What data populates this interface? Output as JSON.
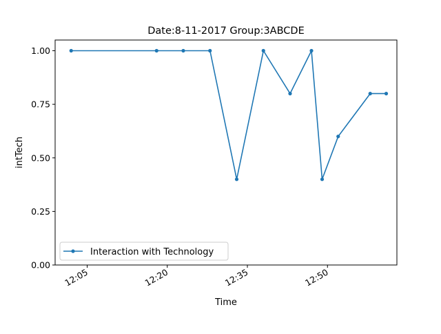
{
  "chart_data": {
    "type": "line",
    "title": "Date:8-11-2017  Group:3ABCDE",
    "xlabel": "Time",
    "ylabel": "intTech",
    "x_ticks": [
      "12:05",
      "12:20",
      "12:35",
      "12:50"
    ],
    "y_ticks": [
      "0.00",
      "0.25",
      "0.50",
      "0.75",
      "1.00"
    ],
    "ylim": [
      0,
      1.05
    ],
    "xlim": [
      "11:59",
      "13:03"
    ],
    "grid": false,
    "legend_position": "lower-left",
    "series": [
      {
        "name": "Interaction with Technology",
        "color": "#1f77b4",
        "marker": "dot",
        "x": [
          "12:02",
          "12:18",
          "12:23",
          "12:28",
          "12:33",
          "12:38",
          "12:43",
          "12:47",
          "12:49",
          "12:52",
          "12:58",
          "13:01"
        ],
        "values": [
          1.0,
          1.0,
          1.0,
          1.0,
          0.4,
          1.0,
          0.8,
          1.0,
          0.4,
          0.6,
          0.8,
          0.8
        ]
      }
    ]
  }
}
